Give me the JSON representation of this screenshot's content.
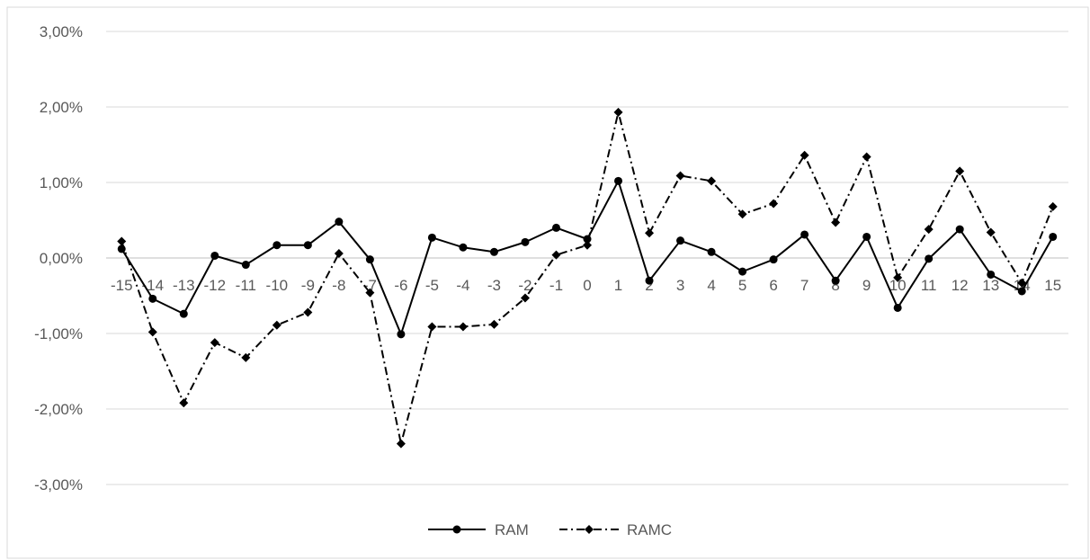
{
  "chart_data": {
    "type": "line",
    "categories": [
      "-15",
      "-14",
      "-13",
      "-12",
      "-11",
      "-10",
      "-9",
      "-8",
      "-7",
      "-6",
      "-5",
      "-4",
      "-3",
      "-2",
      "-1",
      "0",
      "1",
      "2",
      "3",
      "4",
      "5",
      "6",
      "7",
      "8",
      "9",
      "10",
      "11",
      "12",
      "13",
      "14",
      "15"
    ],
    "series": [
      {
        "name": "RAM",
        "values": [
          0.12,
          -0.54,
          -0.74,
          0.03,
          -0.09,
          0.17,
          0.17,
          0.48,
          -0.02,
          -1.01,
          0.27,
          0.14,
          0.08,
          0.21,
          0.4,
          0.25,
          1.02,
          -0.3,
          0.23,
          0.08,
          -0.18,
          -0.02,
          0.31,
          -0.3,
          0.28,
          -0.66,
          -0.01,
          0.38,
          -0.22,
          -0.44,
          0.28
        ],
        "style": "solid",
        "marker": "circle",
        "color": "#000000"
      },
      {
        "name": "RAMC",
        "values": [
          0.22,
          -0.98,
          -1.92,
          -1.12,
          -1.32,
          -0.89,
          -0.72,
          0.06,
          -0.46,
          -2.46,
          -0.91,
          -0.91,
          -0.88,
          -0.53,
          0.04,
          0.17,
          1.93,
          0.33,
          1.09,
          1.02,
          0.58,
          0.72,
          1.36,
          0.47,
          1.34,
          -0.26,
          0.38,
          1.15,
          0.34,
          -0.33,
          0.68
        ],
        "style": "dash-dot",
        "marker": "diamond",
        "color": "#000000"
      }
    ],
    "y_ticks": [
      "3,00%",
      "2,00%",
      "1,00%",
      "0,00%",
      "-1,00%",
      "-2,00%",
      "-3,00%"
    ],
    "ylim": [
      -3,
      3
    ],
    "title": "",
    "xlabel": "",
    "ylabel": "",
    "grid": "horizontal",
    "legend_position": "bottom"
  }
}
